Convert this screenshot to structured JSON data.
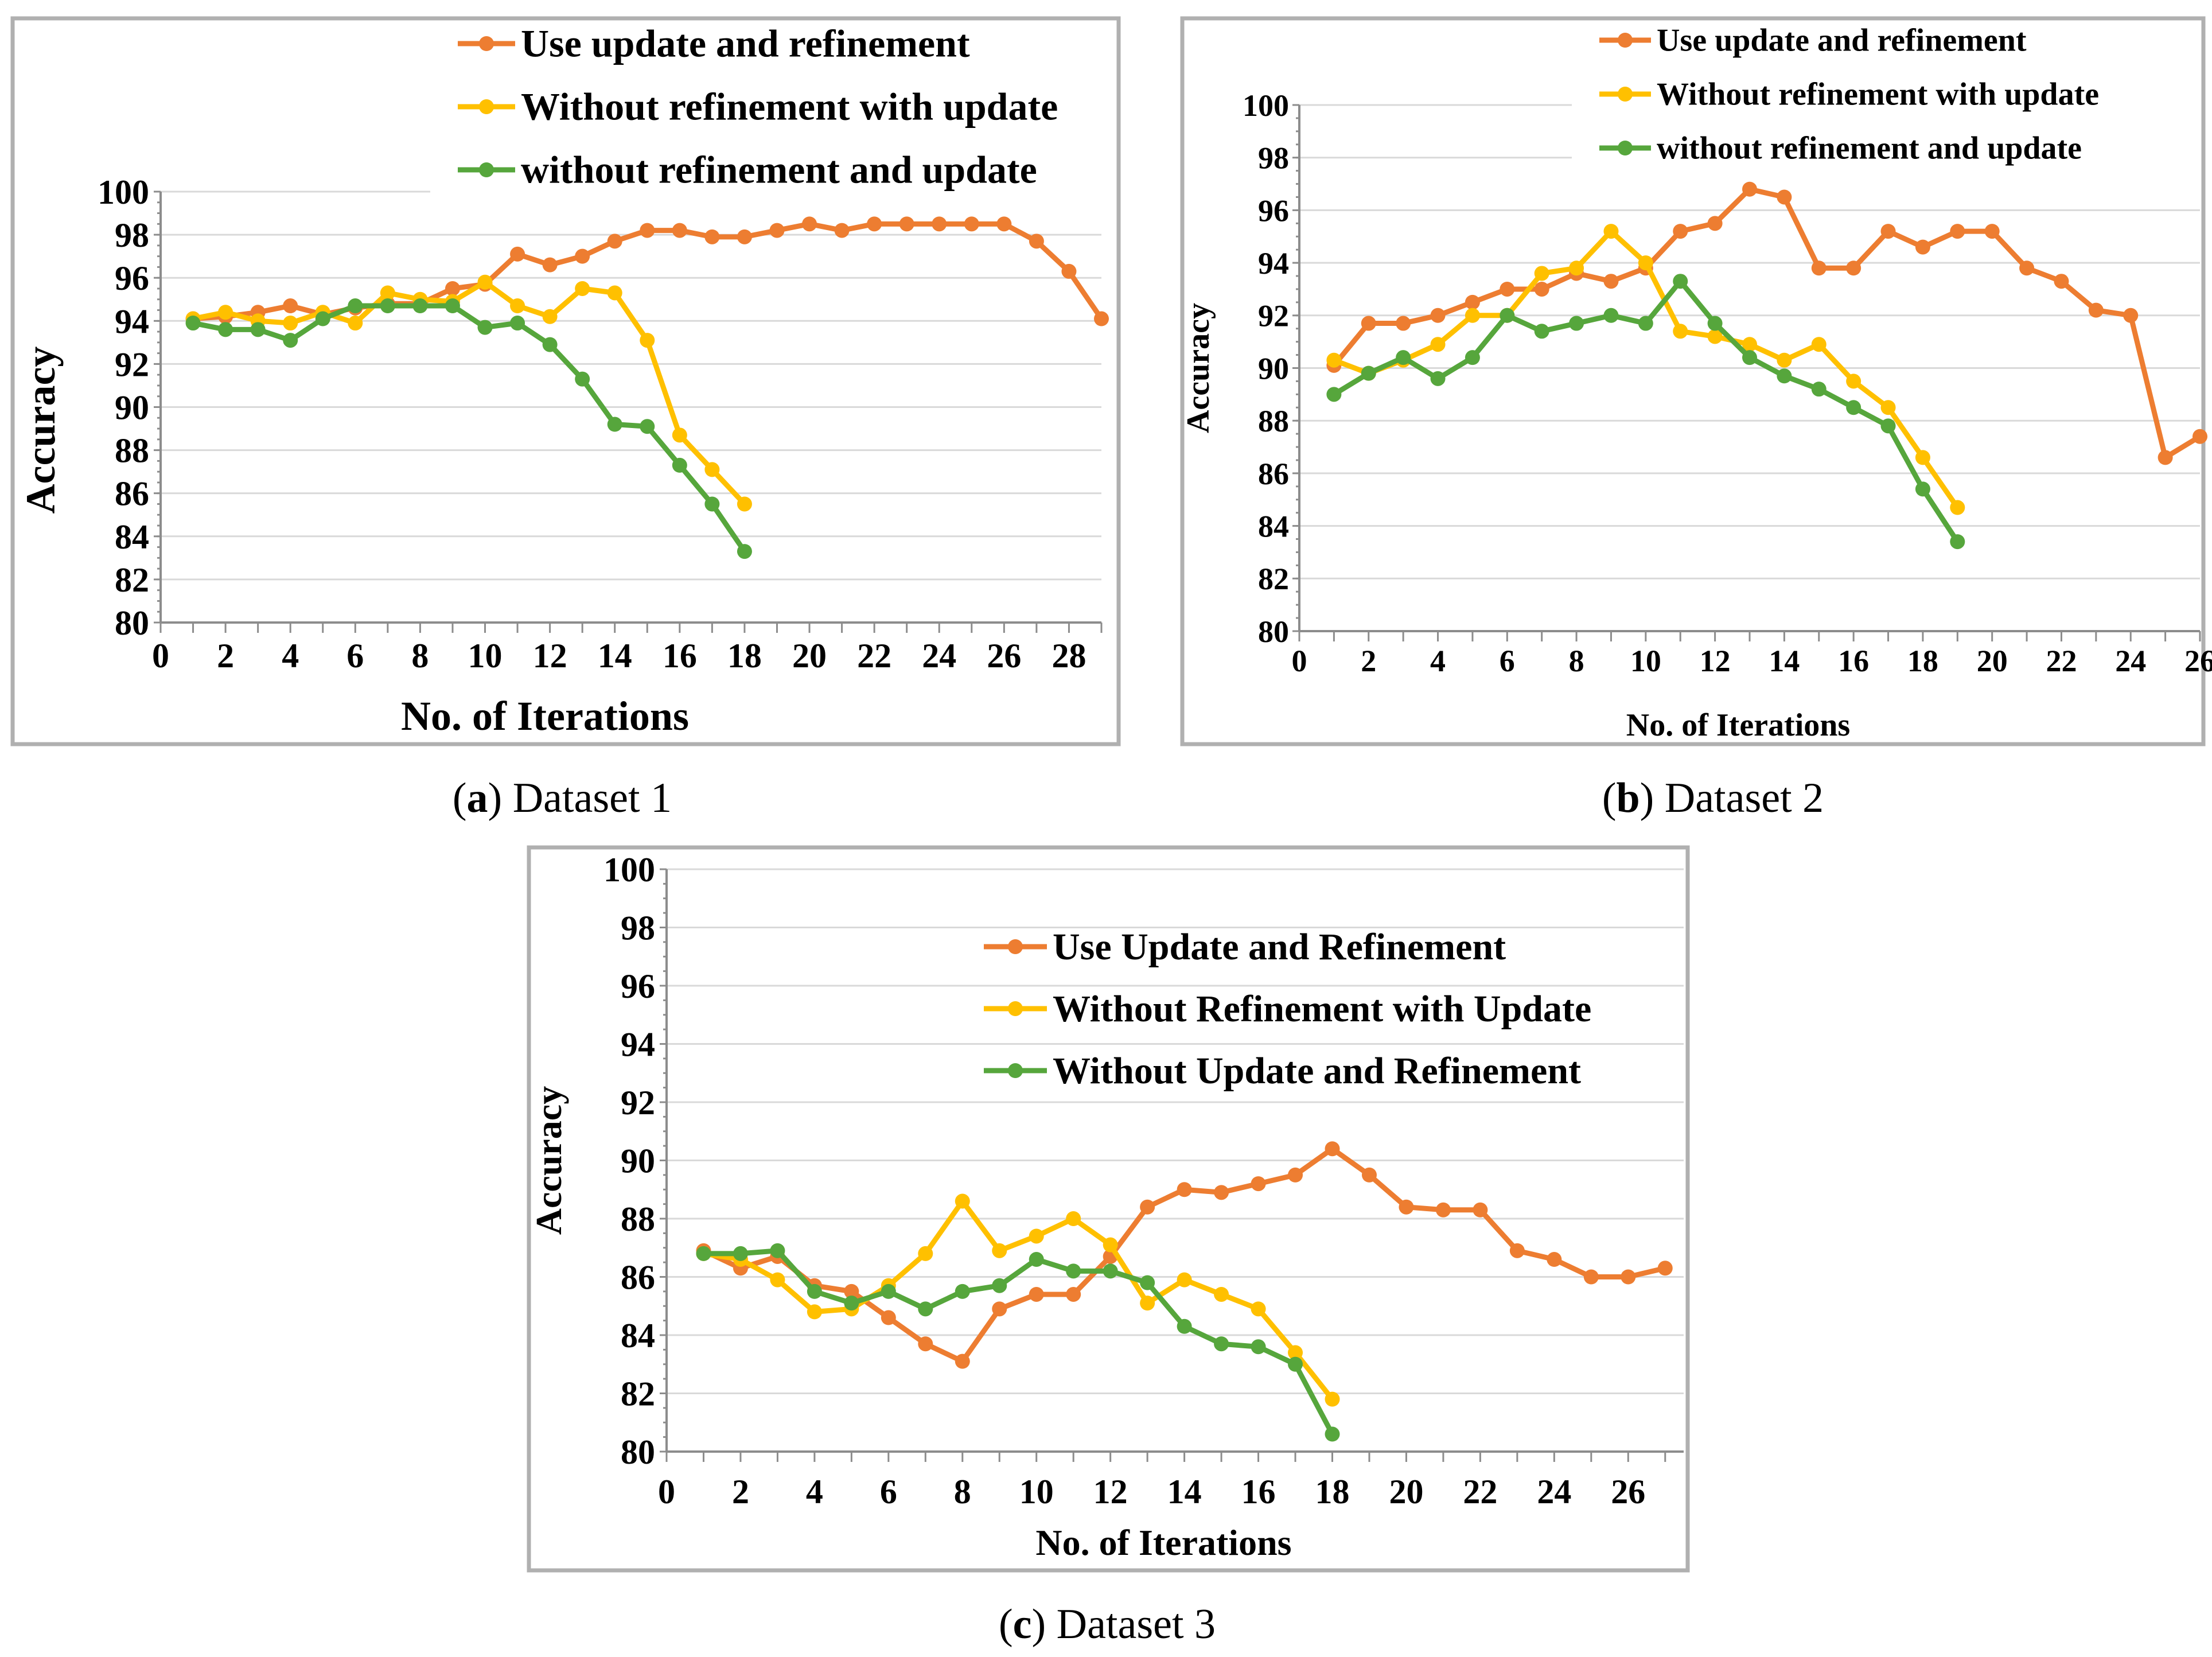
{
  "colors": {
    "orange": "#ED7D31",
    "yellow": "#FFC000",
    "green": "#56A63C"
  },
  "chart_data": [
    {
      "type": "line",
      "title": "",
      "caption": {
        "letter": "a",
        "text": "Dataset 1"
      },
      "xlabel": "No. of Iterations",
      "ylabel": "Accuracy",
      "xlim": [
        0,
        29
      ],
      "ylim": [
        80,
        100
      ],
      "xticks": [
        "0",
        "2",
        "4",
        "6",
        "8",
        "10",
        "12",
        "14",
        "16",
        "18",
        "20",
        "22",
        "24",
        "26",
        "28"
      ],
      "yticks": [
        "80",
        "82",
        "84",
        "86",
        "88",
        "90",
        "92",
        "94",
        "96",
        "98",
        "100"
      ],
      "grid": true,
      "legend": "top-right",
      "series": [
        {
          "name": "Use update and refinement",
          "color": "#ED7D31",
          "x": [
            1,
            2,
            3,
            4,
            5,
            6,
            7,
            8,
            9,
            10,
            11,
            12,
            13,
            14,
            15,
            16,
            17,
            18,
            19,
            20,
            21,
            22,
            23,
            24,
            25,
            26,
            27,
            28,
            29
          ],
          "y": [
            94.1,
            94.2,
            94.4,
            94.7,
            94.3,
            94.6,
            94.8,
            94.8,
            95.5,
            95.7,
            97.1,
            96.6,
            97.0,
            97.7,
            98.2,
            98.2,
            97.9,
            97.9,
            98.2,
            98.5,
            98.2,
            98.5,
            98.5,
            98.5,
            98.5,
            98.5,
            97.7,
            96.3,
            94.1
          ]
        },
        {
          "name": "Without refinement with update",
          "color": "#FFC000",
          "x": [
            1,
            2,
            3,
            4,
            5,
            6,
            7,
            8,
            9,
            10,
            11,
            12,
            13,
            14,
            15,
            16,
            17,
            18
          ],
          "y": [
            94.1,
            94.4,
            94.0,
            93.9,
            94.4,
            93.9,
            95.3,
            95.0,
            94.9,
            95.8,
            94.7,
            94.2,
            95.5,
            95.3,
            93.1,
            88.7,
            87.1,
            85.5
          ]
        },
        {
          "name": "without refinement and update",
          "color": "#56A63C",
          "x": [
            1,
            2,
            3,
            4,
            5,
            6,
            7,
            8,
            9,
            10,
            11,
            12,
            13,
            14,
            15,
            16,
            17,
            18
          ],
          "y": [
            93.9,
            93.6,
            93.6,
            93.1,
            94.1,
            94.7,
            94.7,
            94.7,
            94.7,
            93.7,
            93.9,
            92.9,
            91.3,
            89.2,
            89.1,
            87.3,
            85.5,
            83.3
          ]
        }
      ]
    },
    {
      "type": "line",
      "title": "",
      "caption": {
        "letter": "b",
        "text": "Dataset 2"
      },
      "xlabel": "No. of Iterations",
      "ylabel": "Accuracy",
      "xlim": [
        0,
        26
      ],
      "ylim": [
        80,
        100
      ],
      "xticks": [
        "0",
        "2",
        "4",
        "6",
        "8",
        "10",
        "12",
        "14",
        "16",
        "18",
        "20",
        "22",
        "24",
        "26"
      ],
      "yticks": [
        "80",
        "82",
        "84",
        "86",
        "88",
        "90",
        "92",
        "94",
        "96",
        "98",
        "100"
      ],
      "grid": true,
      "legend": "top-right",
      "series": [
        {
          "name": "Use update and refinement",
          "color": "#ED7D31",
          "x": [
            1,
            2,
            3,
            4,
            5,
            6,
            7,
            8,
            9,
            10,
            11,
            12,
            13,
            14,
            15,
            16,
            17,
            18,
            19,
            20,
            21,
            22,
            23,
            24,
            25,
            26
          ],
          "y": [
            90.1,
            91.7,
            91.7,
            92.0,
            92.5,
            93.0,
            93.0,
            93.6,
            93.3,
            93.8,
            95.2,
            95.5,
            96.8,
            96.5,
            93.8,
            93.8,
            95.2,
            94.6,
            95.2,
            95.2,
            93.8,
            93.3,
            92.2,
            92.0,
            86.6,
            87.4
          ]
        },
        {
          "name": "Without refinement with update",
          "color": "#FFC000",
          "x": [
            1,
            2,
            3,
            4,
            5,
            6,
            7,
            8,
            9,
            10,
            11,
            12,
            13,
            14,
            15,
            16,
            17,
            18,
            19
          ],
          "y": [
            90.3,
            89.8,
            90.3,
            90.9,
            92.0,
            92.0,
            93.6,
            93.8,
            95.2,
            94.0,
            91.4,
            91.2,
            90.9,
            90.3,
            90.9,
            89.5,
            88.5,
            86.6,
            84.7
          ]
        },
        {
          "name": "without refinement and update",
          "color": "#56A63C",
          "x": [
            1,
            2,
            3,
            4,
            5,
            6,
            7,
            8,
            9,
            10,
            11,
            12,
            13,
            14,
            15,
            16,
            17,
            18,
            19
          ],
          "y": [
            89.0,
            89.8,
            90.4,
            89.6,
            90.4,
            92.0,
            91.4,
            91.7,
            92.0,
            91.7,
            93.3,
            91.7,
            90.4,
            89.7,
            89.2,
            88.5,
            87.8,
            85.4,
            83.4
          ]
        }
      ]
    },
    {
      "type": "line",
      "title": "",
      "caption": {
        "letter": "c",
        "text": "Dataset 3"
      },
      "xlabel": "No. of Iterations",
      "ylabel": "Accuracy",
      "xlim": [
        0,
        27.5
      ],
      "ylim": [
        80,
        100
      ],
      "xticks": [
        "0",
        "2",
        "4",
        "6",
        "8",
        "10",
        "12",
        "14",
        "16",
        "18",
        "20",
        "22",
        "24",
        "26"
      ],
      "yticks": [
        "80",
        "82",
        "84",
        "86",
        "88",
        "90",
        "92",
        "94",
        "96",
        "98",
        "100"
      ],
      "grid": true,
      "legend": "top-right",
      "series": [
        {
          "name": "Use Update and Refinement",
          "color": "#ED7D31",
          "x": [
            1,
            2,
            3,
            4,
            5,
            6,
            7,
            8,
            9,
            10,
            11,
            12,
            13,
            14,
            15,
            16,
            17,
            18,
            19,
            20,
            21,
            22,
            23,
            24,
            25,
            26,
            27
          ],
          "y": [
            86.9,
            86.3,
            86.7,
            85.7,
            85.5,
            84.6,
            83.7,
            83.1,
            84.9,
            85.4,
            85.4,
            86.7,
            88.4,
            89.0,
            88.9,
            89.2,
            89.5,
            90.4,
            89.5,
            88.4,
            88.3,
            88.3,
            86.9,
            86.6,
            86.0,
            86.0,
            86.3
          ]
        },
        {
          "name": "Without Refinement with Update",
          "color": "#FFC000",
          "x": [
            1,
            2,
            3,
            4,
            5,
            6,
            7,
            8,
            9,
            10,
            11,
            12,
            13,
            14,
            15,
            16,
            17,
            18
          ],
          "y": [
            86.8,
            86.6,
            85.9,
            84.8,
            84.9,
            85.7,
            86.8,
            88.6,
            86.9,
            87.4,
            88.0,
            87.1,
            85.1,
            85.9,
            85.4,
            84.9,
            83.4,
            81.8
          ]
        },
        {
          "name": "Without Update and Refinement",
          "color": "#56A63C",
          "x": [
            1,
            2,
            3,
            4,
            5,
            6,
            7,
            8,
            9,
            10,
            11,
            12,
            13,
            14,
            15,
            16,
            17,
            18
          ],
          "y": [
            86.8,
            86.8,
            86.9,
            85.5,
            85.1,
            85.5,
            84.9,
            85.5,
            85.7,
            86.6,
            86.2,
            86.2,
            85.8,
            84.3,
            83.7,
            83.6,
            83.0,
            80.6
          ]
        }
      ]
    }
  ]
}
